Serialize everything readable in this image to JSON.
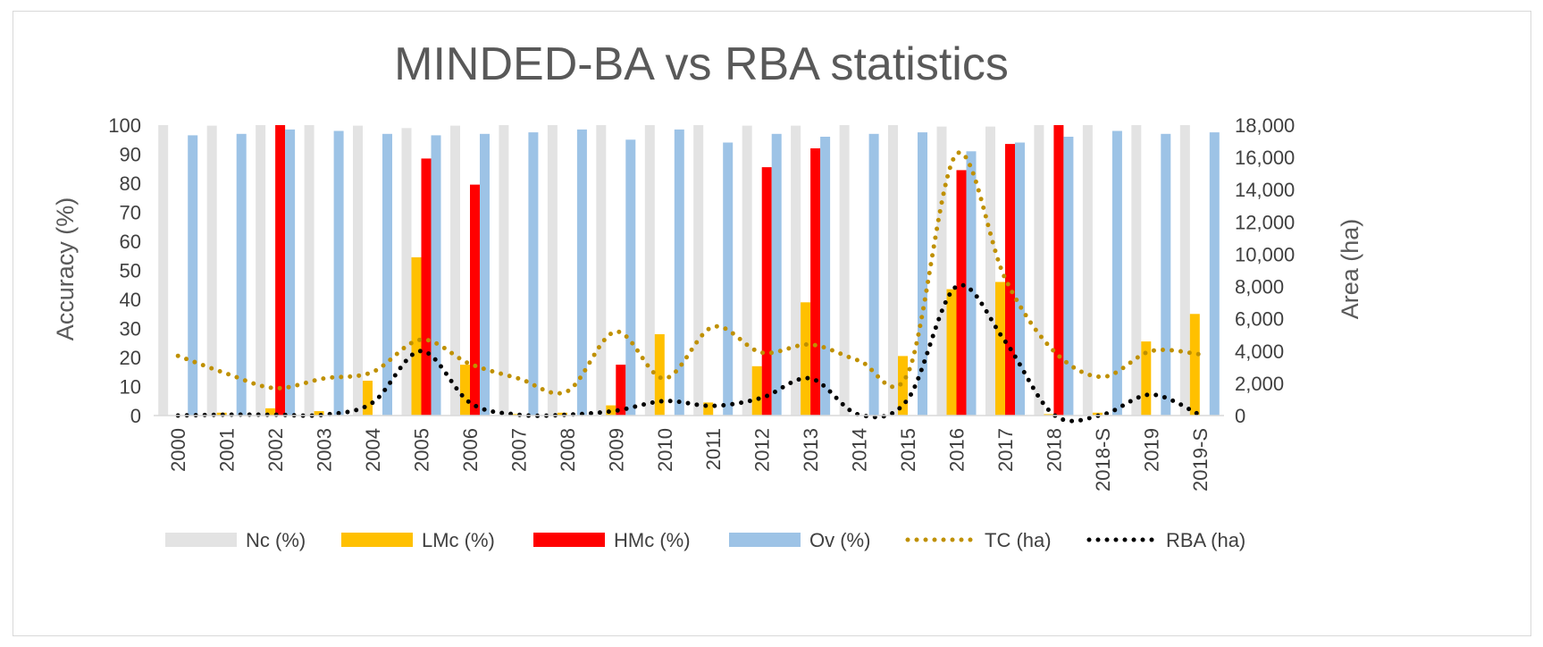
{
  "chart_data": {
    "type": "bar",
    "title": "MINDED-BA vs RBA statistics",
    "xlabel": "",
    "ylabel": "Accuracy (%)",
    "y2label": "Area (ha)",
    "ylim": [
      0,
      100
    ],
    "y2lim": [
      0,
      18000
    ],
    "yticks": [
      "0",
      "10",
      "20",
      "30",
      "40",
      "50",
      "60",
      "70",
      "80",
      "90",
      "100"
    ],
    "y2ticks": [
      "0",
      "2,000",
      "4,000",
      "6,000",
      "8,000",
      "10,000",
      "12,000",
      "14,000",
      "16,000",
      "18,000"
    ],
    "grid": false,
    "legend_position": "bottom",
    "categories": [
      "2000",
      "2001",
      "2002",
      "2003",
      "2004",
      "2005",
      "2006",
      "2007",
      "2008",
      "2009",
      "2010",
      "2011",
      "2012",
      "2013",
      "2014",
      "2015",
      "2016",
      "2017",
      "2018",
      "2018-S",
      "2019",
      "2019-S"
    ],
    "series": [
      {
        "name": "Nc (%)",
        "kind": "bar",
        "axis": "left",
        "color": "#e3e3e3",
        "values": [
          100,
          99.8,
          100,
          100,
          99.8,
          99,
          99.8,
          100,
          100,
          100,
          100,
          100,
          99.8,
          99.8,
          100,
          100,
          99.5,
          99.5,
          100,
          100,
          100,
          100
        ]
      },
      {
        "name": "LMc (%)",
        "kind": "bar",
        "axis": "left",
        "color": "#ffc000",
        "values": [
          0,
          1,
          2.5,
          1.5,
          12,
          54.5,
          17.5,
          0.5,
          1,
          3.5,
          28,
          4.5,
          17,
          39,
          0,
          20.5,
          43.5,
          46,
          0.5,
          1,
          25.5,
          35
        ]
      },
      {
        "name": "HMc (%)",
        "kind": "bar",
        "axis": "left",
        "color": "#ff0000",
        "values": [
          0,
          0,
          100,
          0,
          0,
          88.5,
          79.5,
          0,
          0,
          17.5,
          0,
          0,
          85.5,
          92,
          0,
          0,
          84.5,
          93.5,
          100,
          0,
          0,
          0
        ]
      },
      {
        "name": "Ov (%)",
        "kind": "bar",
        "axis": "left",
        "color": "#9dc3e6",
        "values": [
          96.5,
          97,
          98.5,
          98,
          97,
          96.5,
          97,
          97.5,
          98.5,
          95,
          98.5,
          94,
          97,
          96,
          97,
          97.5,
          91,
          94,
          96,
          98,
          97,
          97.5
        ]
      },
      {
        "name": "TC (ha)",
        "kind": "line",
        "style": "dotted",
        "axis": "right",
        "color": "#bf9000",
        "values": [
          3700,
          2600,
          1700,
          2300,
          2700,
          4700,
          3200,
          2300,
          1500,
          5200,
          2300,
          5500,
          3900,
          4400,
          3400,
          2600,
          16200,
          8500,
          4000,
          2400,
          4000,
          3800
        ]
      },
      {
        "name": "RBA (ha)",
        "kind": "line",
        "style": "dotted",
        "axis": "right",
        "color": "#000000",
        "values": [
          0,
          50,
          50,
          50,
          800,
          4000,
          800,
          50,
          50,
          300,
          900,
          600,
          1100,
          2300,
          50,
          1000,
          8000,
          4600,
          50,
          50,
          1300,
          50
        ]
      }
    ]
  }
}
